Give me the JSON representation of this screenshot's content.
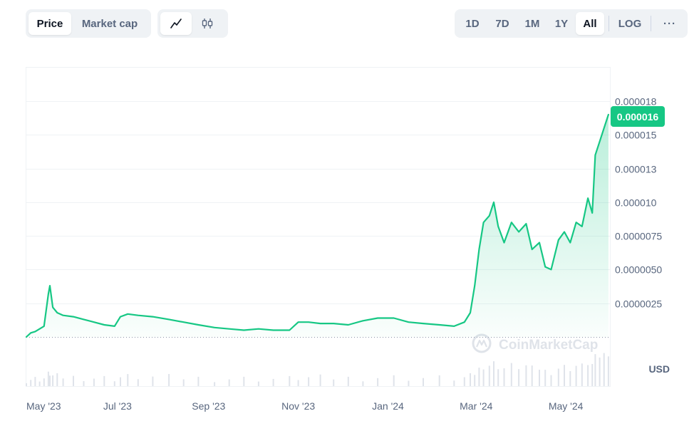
{
  "toolbar": {
    "metric_tabs": [
      {
        "label": "Price",
        "active": true
      },
      {
        "label": "Market cap",
        "active": false
      }
    ],
    "chart_type_icons": [
      {
        "icon": "line-chart-icon",
        "active": true
      },
      {
        "icon": "candlestick-icon",
        "active": false
      }
    ],
    "ranges": [
      {
        "label": "1D",
        "active": false
      },
      {
        "label": "7D",
        "active": false
      },
      {
        "label": "1M",
        "active": false
      },
      {
        "label": "1Y",
        "active": false
      },
      {
        "label": "All",
        "active": true
      }
    ],
    "log_label": "LOG",
    "more_label": "···"
  },
  "colors": {
    "line": "#16c784",
    "badge": "#16c784",
    "grid": "#eff2f5",
    "text": "#58667e"
  },
  "watermark": "CoinMarketCap",
  "chart_data": {
    "type": "area",
    "title": "",
    "xlabel": "",
    "ylabel": "",
    "y_unit": "USD",
    "current_price_label": "0.000016",
    "y_ticks": [
      {
        "value": 2.5e-06,
        "label": "0.0000025"
      },
      {
        "value": 5e-06,
        "label": "0.0000050"
      },
      {
        "value": 7.5e-06,
        "label": "0.0000075"
      },
      {
        "value": 1e-05,
        "label": "0.000010"
      },
      {
        "value": 1.25e-05,
        "label": "0.000013"
      },
      {
        "value": 1.5e-05,
        "label": "0.000015"
      },
      {
        "value": 1.75e-05,
        "label": "0.000018"
      }
    ],
    "x_ticks": [
      {
        "date": "2023-05-01",
        "label": "May '23"
      },
      {
        "date": "2023-07-01",
        "label": "Jul '23"
      },
      {
        "date": "2023-09-01",
        "label": "Sep '23"
      },
      {
        "date": "2023-11-01",
        "label": "Nov '23"
      },
      {
        "date": "2024-01-01",
        "label": "Jan '24"
      },
      {
        "date": "2024-03-01",
        "label": "Mar '24"
      },
      {
        "date": "2024-05-01",
        "label": "May '24"
      }
    ],
    "xlim": [
      "2023-04-30",
      "2024-05-31"
    ],
    "ylim": [
      0,
      2e-05
    ],
    "grid": true,
    "series": [
      {
        "points": [
          [
            "2023-04-30",
            0.0
          ],
          [
            "2023-05-03",
            3e-07
          ],
          [
            "2023-05-06",
            4e-07
          ],
          [
            "2023-05-09",
            6e-07
          ],
          [
            "2023-05-12",
            8e-07
          ],
          [
            "2023-05-15",
            3.2e-06
          ],
          [
            "2023-05-16",
            3.8e-06
          ],
          [
            "2023-05-18",
            2.2e-06
          ],
          [
            "2023-05-21",
            1.8e-06
          ],
          [
            "2023-05-25",
            1.6e-06
          ],
          [
            "2023-06-01",
            1.5e-06
          ],
          [
            "2023-06-08",
            1.3e-06
          ],
          [
            "2023-06-15",
            1.1e-06
          ],
          [
            "2023-06-22",
            9e-07
          ],
          [
            "2023-06-29",
            8e-07
          ],
          [
            "2023-07-03",
            1.5e-06
          ],
          [
            "2023-07-08",
            1.7e-06
          ],
          [
            "2023-07-15",
            1.6e-06
          ],
          [
            "2023-07-25",
            1.5e-06
          ],
          [
            "2023-08-05",
            1.3e-06
          ],
          [
            "2023-08-15",
            1.1e-06
          ],
          [
            "2023-08-25",
            9e-07
          ],
          [
            "2023-09-05",
            7e-07
          ],
          [
            "2023-09-15",
            6e-07
          ],
          [
            "2023-09-25",
            5e-07
          ],
          [
            "2023-10-05",
            6e-07
          ],
          [
            "2023-10-15",
            5e-07
          ],
          [
            "2023-10-26",
            5e-07
          ],
          [
            "2023-11-01",
            1.1e-06
          ],
          [
            "2023-11-08",
            1.1e-06
          ],
          [
            "2023-11-16",
            1e-06
          ],
          [
            "2023-11-25",
            1e-06
          ],
          [
            "2023-12-05",
            9e-07
          ],
          [
            "2023-12-15",
            1.2e-06
          ],
          [
            "2023-12-25",
            1.4e-06
          ],
          [
            "2024-01-05",
            1.4e-06
          ],
          [
            "2024-01-15",
            1.1e-06
          ],
          [
            "2024-01-25",
            1e-06
          ],
          [
            "2024-02-05",
            9e-07
          ],
          [
            "2024-02-15",
            8e-07
          ],
          [
            "2024-02-22",
            1.1e-06
          ],
          [
            "2024-02-26",
            1.8e-06
          ],
          [
            "2024-02-29",
            3.8e-06
          ],
          [
            "2024-03-03",
            6.5e-06
          ],
          [
            "2024-03-06",
            8.5e-06
          ],
          [
            "2024-03-10",
            9e-06
          ],
          [
            "2024-03-13",
            1e-05
          ],
          [
            "2024-03-16",
            8.2e-06
          ],
          [
            "2024-03-20",
            7e-06
          ],
          [
            "2024-03-25",
            8.5e-06
          ],
          [
            "2024-03-30",
            7.8e-06
          ],
          [
            "2024-04-04",
            8.4e-06
          ],
          [
            "2024-04-08",
            6.5e-06
          ],
          [
            "2024-04-13",
            7e-06
          ],
          [
            "2024-04-17",
            5.2e-06
          ],
          [
            "2024-04-21",
            5e-06
          ],
          [
            "2024-04-26",
            7.2e-06
          ],
          [
            "2024-04-30",
            7.8e-06
          ],
          [
            "2024-05-04",
            7e-06
          ],
          [
            "2024-05-08",
            8.5e-06
          ],
          [
            "2024-05-12",
            8.2e-06
          ],
          [
            "2024-05-16",
            1.03e-05
          ],
          [
            "2024-05-19",
            9.2e-06
          ],
          [
            "2024-05-21",
            1.35e-05
          ],
          [
            "2024-05-24",
            1.45e-05
          ],
          [
            "2024-05-27",
            1.55e-05
          ],
          [
            "2024-05-30",
            1.65e-05
          ]
        ]
      }
    ],
    "volume_bars_shown": true
  }
}
